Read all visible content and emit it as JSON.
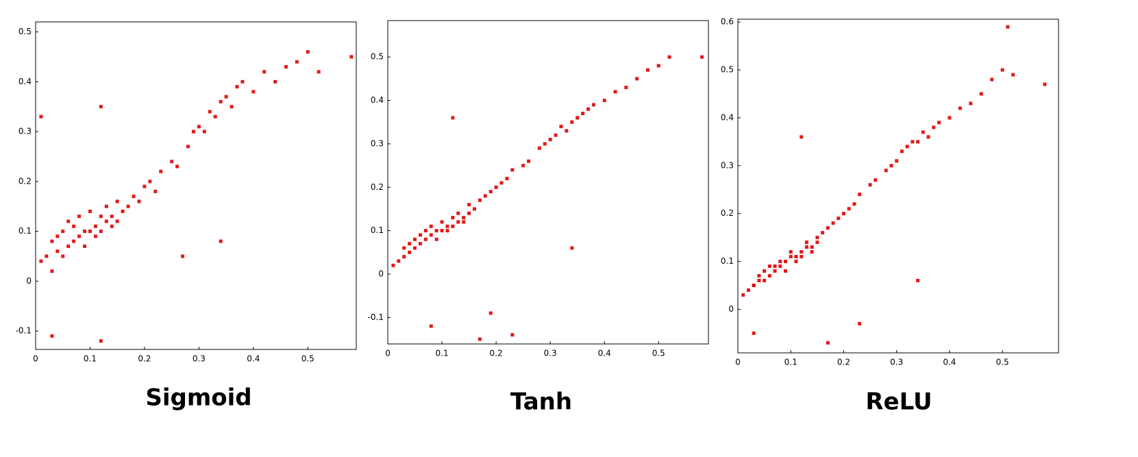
{
  "chart_data": [
    {
      "type": "scatter",
      "title": "Sigmoid",
      "color": "#e00000",
      "x": [
        0.01,
        0.02,
        0.03,
        0.03,
        0.04,
        0.04,
        0.05,
        0.05,
        0.06,
        0.06,
        0.07,
        0.07,
        0.08,
        0.08,
        0.09,
        0.09,
        0.1,
        0.1,
        0.11,
        0.11,
        0.12,
        0.12,
        0.13,
        0.13,
        0.14,
        0.14,
        0.15,
        0.15,
        0.16,
        0.17,
        0.18,
        0.19,
        0.2,
        0.21,
        0.22,
        0.23,
        0.25,
        0.26,
        0.28,
        0.29,
        0.3,
        0.31,
        0.32,
        0.33,
        0.34,
        0.35,
        0.36,
        0.37,
        0.38,
        0.4,
        0.42,
        0.44,
        0.46,
        0.48,
        0.5,
        0.52,
        0.58,
        0.01,
        0.12,
        0.34,
        0.03,
        0.12,
        0.27
      ],
      "values": [
        0.04,
        0.05,
        0.02,
        0.08,
        0.06,
        0.09,
        0.05,
        0.1,
        0.07,
        0.12,
        0.08,
        0.11,
        0.09,
        0.13,
        0.1,
        0.07,
        0.1,
        0.14,
        0.11,
        0.09,
        0.13,
        0.1,
        0.12,
        0.15,
        0.13,
        0.11,
        0.16,
        0.12,
        0.14,
        0.15,
        0.17,
        0.16,
        0.19,
        0.2,
        0.18,
        0.22,
        0.24,
        0.23,
        0.27,
        0.3,
        0.31,
        0.3,
        0.34,
        0.33,
        0.36,
        0.37,
        0.35,
        0.39,
        0.4,
        0.38,
        0.42,
        0.4,
        0.43,
        0.44,
        0.46,
        0.42,
        0.45,
        0.33,
        0.35,
        0.08,
        -0.11,
        -0.12,
        0.05
      ],
      "xlim": [
        0,
        0.589
      ],
      "ylim": [
        -0.137,
        0.52
      ],
      "xticks": [
        0,
        0.1,
        0.2,
        0.3,
        0.4,
        0.5
      ],
      "yticks": [
        -0.1,
        0,
        0.1,
        0.2,
        0.3,
        0.4,
        0.5
      ]
    },
    {
      "type": "scatter",
      "title": "Tanh",
      "color": "#e00000",
      "x": [
        0.01,
        0.02,
        0.03,
        0.03,
        0.04,
        0.04,
        0.05,
        0.05,
        0.06,
        0.06,
        0.07,
        0.07,
        0.08,
        0.08,
        0.09,
        0.09,
        0.1,
        0.1,
        0.11,
        0.11,
        0.12,
        0.12,
        0.13,
        0.13,
        0.14,
        0.14,
        0.15,
        0.15,
        0.16,
        0.17,
        0.18,
        0.19,
        0.2,
        0.21,
        0.22,
        0.23,
        0.25,
        0.26,
        0.28,
        0.29,
        0.3,
        0.31,
        0.32,
        0.33,
        0.34,
        0.35,
        0.36,
        0.37,
        0.38,
        0.4,
        0.42,
        0.44,
        0.46,
        0.48,
        0.5,
        0.52,
        0.58,
        0.12,
        0.34,
        0.17,
        0.23,
        0.19,
        0.08
      ],
      "values": [
        0.02,
        0.03,
        0.04,
        0.06,
        0.05,
        0.07,
        0.06,
        0.08,
        0.07,
        0.09,
        0.08,
        0.1,
        0.09,
        0.11,
        0.1,
        0.08,
        0.1,
        0.12,
        0.11,
        0.1,
        0.13,
        0.11,
        0.12,
        0.14,
        0.13,
        0.12,
        0.16,
        0.14,
        0.15,
        0.17,
        0.18,
        0.19,
        0.2,
        0.21,
        0.22,
        0.24,
        0.25,
        0.26,
        0.29,
        0.3,
        0.31,
        0.32,
        0.34,
        0.33,
        0.35,
        0.36,
        0.37,
        0.38,
        0.39,
        0.4,
        0.42,
        0.43,
        0.45,
        0.47,
        0.48,
        0.5,
        0.5,
        0.36,
        0.06,
        -0.15,
        -0.14,
        -0.09,
        -0.12
      ],
      "xlim": [
        0,
        0.592
      ],
      "ylim": [
        -0.161,
        0.584
      ],
      "xticks": [
        0,
        0.1,
        0.2,
        0.3,
        0.4,
        0.5
      ],
      "yticks": [
        -0.1,
        0,
        0.1,
        0.2,
        0.3,
        0.4,
        0.5
      ]
    },
    {
      "type": "scatter",
      "title": "ReLU",
      "color": "#e00000",
      "x": [
        0.01,
        0.02,
        0.03,
        0.03,
        0.04,
        0.04,
        0.05,
        0.05,
        0.06,
        0.06,
        0.07,
        0.07,
        0.08,
        0.08,
        0.09,
        0.09,
        0.1,
        0.1,
        0.11,
        0.11,
        0.12,
        0.12,
        0.13,
        0.13,
        0.14,
        0.14,
        0.15,
        0.15,
        0.16,
        0.17,
        0.18,
        0.19,
        0.2,
        0.21,
        0.22,
        0.23,
        0.25,
        0.26,
        0.28,
        0.29,
        0.3,
        0.31,
        0.32,
        0.33,
        0.34,
        0.35,
        0.36,
        0.37,
        0.38,
        0.4,
        0.42,
        0.44,
        0.46,
        0.48,
        0.5,
        0.52,
        0.58,
        0.51,
        0.12,
        0.34,
        0.03,
        0.17,
        0.23
      ],
      "values": [
        0.03,
        0.04,
        0.05,
        0.05,
        0.06,
        0.07,
        0.06,
        0.08,
        0.07,
        0.09,
        0.08,
        0.09,
        0.09,
        0.1,
        0.1,
        0.08,
        0.11,
        0.12,
        0.1,
        0.11,
        0.12,
        0.11,
        0.13,
        0.14,
        0.13,
        0.12,
        0.15,
        0.14,
        0.16,
        0.17,
        0.18,
        0.19,
        0.2,
        0.21,
        0.22,
        0.24,
        0.26,
        0.27,
        0.29,
        0.3,
        0.31,
        0.33,
        0.34,
        0.35,
        0.35,
        0.37,
        0.36,
        0.38,
        0.39,
        0.4,
        0.42,
        0.43,
        0.45,
        0.48,
        0.5,
        0.49,
        0.47,
        0.59,
        0.36,
        0.06,
        -0.05,
        -0.07,
        -0.03
      ],
      "xlim": [
        0,
        0.606
      ],
      "ylim": [
        -0.091,
        0.606
      ],
      "xticks": [
        0,
        0.1,
        0.2,
        0.3,
        0.4,
        0.5
      ],
      "yticks": [
        0,
        0.1,
        0.2,
        0.3,
        0.4,
        0.5,
        0.6
      ]
    }
  ]
}
